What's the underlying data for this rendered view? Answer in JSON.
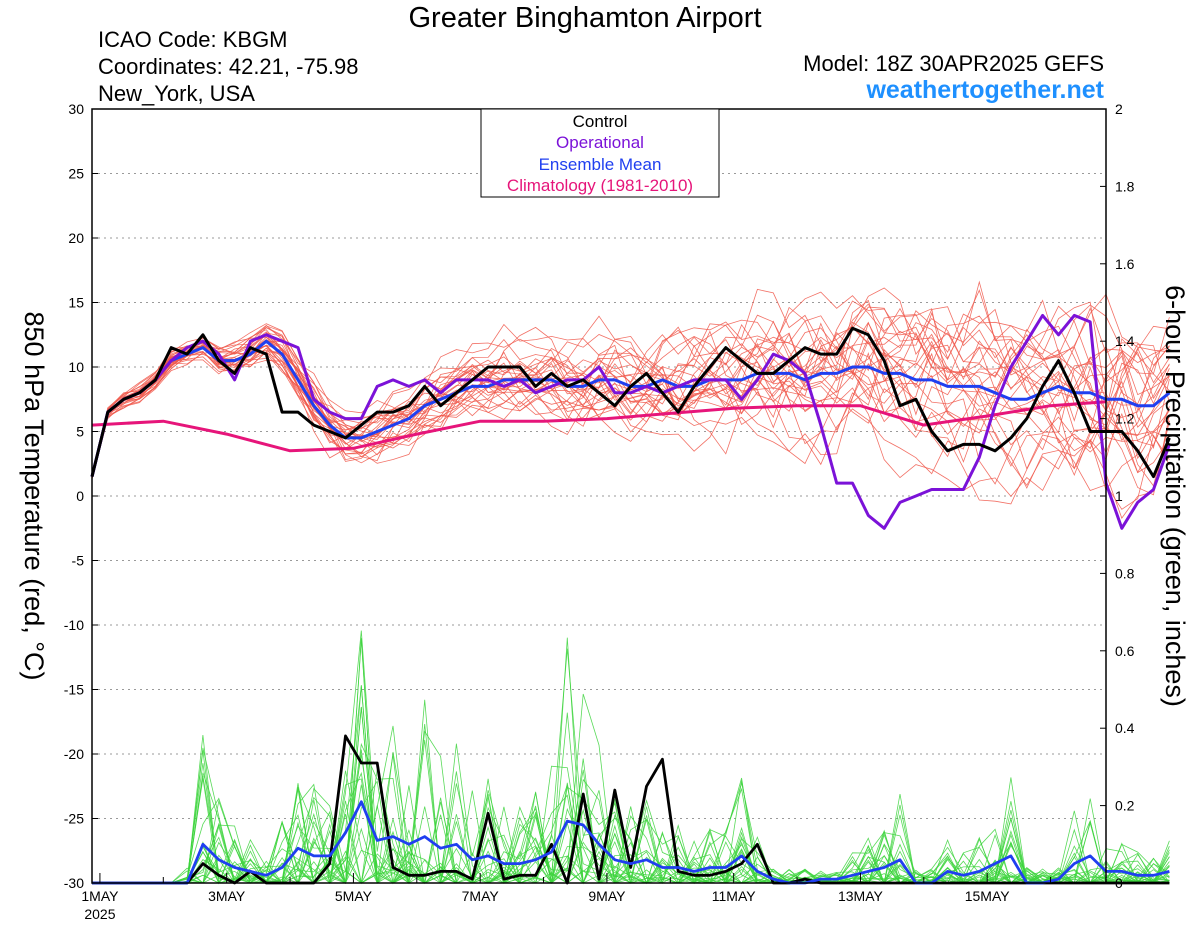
{
  "header": {
    "title": "Greater Binghamton Airport",
    "icao": "ICAO Code: KBGM",
    "coordinates": "Coordinates: 42.21, -75.98",
    "location": "New_York, USA",
    "model": "Model: 18Z 30APR2025 GEFS",
    "site": "weathertogether.net"
  },
  "colors": {
    "control": "#000000",
    "operational": "#7b12d8",
    "mean": "#1f3ff0",
    "climatology": "#e6157a",
    "members_temp": "#f0584b",
    "members_precip": "#3cd43c",
    "site": "#1e90ff"
  },
  "chart_data": {
    "type": "line",
    "title": "Greater Binghamton Airport",
    "ylabel": "850 hPa Temperature (red, °C)",
    "y2label": "6-hour Precipitation (green, inches)",
    "ylim": [
      -30,
      30
    ],
    "y2lim": [
      0,
      2
    ],
    "yticks": [
      30,
      25,
      20,
      15,
      10,
      5,
      0,
      -5,
      -10,
      -15,
      -20,
      -25,
      -30
    ],
    "y2ticks": [
      2,
      1.8,
      1.6,
      1.4,
      1.2,
      1,
      0.8,
      0.6,
      0.4,
      0.2,
      0
    ],
    "xlim_day": [
      0.875,
      16.875
    ],
    "x_ticks": [
      {
        "day": 1,
        "label": "1MAY",
        "sublabel": "2025"
      },
      {
        "day": 3,
        "label": "3MAY"
      },
      {
        "day": 5,
        "label": "5MAY"
      },
      {
        "day": 7,
        "label": "7MAY"
      },
      {
        "day": 9,
        "label": "9MAY"
      },
      {
        "day": 11,
        "label": "11MAY"
      },
      {
        "day": 13,
        "label": "13MAY"
      },
      {
        "day": 15,
        "label": "15MAY"
      }
    ],
    "grid": "dotted horizontal",
    "legend_position": "top-center",
    "legend": [
      "Control",
      "Operational",
      "Ensemble Mean",
      "Climatology (1981-2010)"
    ],
    "x_start_day": 0.875,
    "x_step_day": 0.25,
    "temperature": {
      "control": [
        1.5,
        6.5,
        7.5,
        8.0,
        9.0,
        11.5,
        11.0,
        12.5,
        10.5,
        9.5,
        11.5,
        11.0,
        6.5,
        6.5,
        5.5,
        5.0,
        4.5,
        5.5,
        6.5,
        6.5,
        7.0,
        8.5,
        7.0,
        8.0,
        9.0,
        10.0,
        10.0,
        10.0,
        8.5,
        9.5,
        8.5,
        9.0,
        8.0,
        7.0,
        8.5,
        9.5,
        8.0,
        6.5,
        8.5,
        10.0,
        11.5,
        10.5,
        9.5,
        9.5,
        10.5,
        11.5,
        11.0,
        11.0,
        13.0,
        12.5,
        10.5,
        7.0,
        7.5,
        5.0,
        3.5,
        4.0,
        4.0,
        3.5,
        4.5,
        6.0,
        8.5,
        10.5,
        8.0,
        5.0,
        5.0,
        5.0,
        3.5,
        1.5,
        4.5
      ],
      "operational": [
        1.5,
        6.5,
        7.5,
        8.0,
        9.0,
        10.5,
        11.5,
        12.0,
        11.0,
        9.0,
        12.0,
        12.5,
        12.0,
        11.5,
        7.5,
        6.5,
        6.0,
        6.0,
        8.5,
        9.0,
        8.5,
        9.0,
        8.0,
        9.0,
        9.0,
        9.0,
        8.5,
        9.0,
        8.0,
        8.5,
        9.0,
        9.0,
        10.0,
        8.0,
        8.0,
        8.5,
        8.0,
        8.5,
        9.0,
        9.0,
        9.0,
        7.5,
        9.0,
        11.0,
        10.5,
        9.5,
        5.5,
        1.0,
        1.0,
        -1.5,
        -2.5,
        -0.5,
        0.0,
        0.5,
        0.5,
        0.5,
        3.0,
        7.0,
        10.0,
        12.0,
        14.0,
        12.5,
        14.0,
        13.5,
        1.0,
        -2.5,
        -0.5,
        0.5,
        4.0
      ],
      "mean": [
        1.5,
        6.5,
        7.5,
        8.0,
        9.0,
        10.5,
        11.0,
        11.5,
        10.5,
        10.5,
        11.0,
        12.0,
        11.0,
        9.0,
        7.0,
        5.5,
        4.5,
        4.5,
        5.0,
        5.5,
        6.0,
        7.0,
        7.5,
        8.0,
        8.5,
        8.5,
        9.0,
        9.0,
        9.0,
        9.0,
        8.5,
        8.5,
        9.0,
        9.0,
        8.5,
        8.5,
        9.0,
        8.5,
        8.5,
        9.0,
        9.0,
        9.0,
        9.5,
        9.5,
        9.5,
        9.0,
        9.5,
        9.5,
        10.0,
        10.0,
        9.5,
        9.5,
        9.0,
        9.0,
        8.5,
        8.5,
        8.5,
        8.0,
        7.5,
        7.5,
        8.0,
        8.5,
        8.0,
        8.0,
        7.5,
        7.5,
        7.0,
        7.0,
        8.0
      ],
      "climatology": {
        "day": [
          0.875,
          2.0,
          3.0,
          4.0,
          5.0,
          6.0,
          7.0,
          8.0,
          9.0,
          10.0,
          11.0,
          12.0,
          13.0,
          14.0,
          15.0,
          16.0,
          16.875
        ],
        "value": [
          5.5,
          5.8,
          4.8,
          3.5,
          3.7,
          4.8,
          5.8,
          5.8,
          6.0,
          6.4,
          6.8,
          7.0,
          7.0,
          5.5,
          6.2,
          7.0,
          7.3
        ]
      }
    },
    "precipitation": {
      "control": [
        0.0,
        0.0,
        0.0,
        0.0,
        0.0,
        0.0,
        0.0,
        0.05,
        0.02,
        0.0,
        0.03,
        0.0,
        0.0,
        0.0,
        0.0,
        0.05,
        0.38,
        0.31,
        0.31,
        0.04,
        0.02,
        0.02,
        0.03,
        0.03,
        0.01,
        0.18,
        0.01,
        0.02,
        0.02,
        0.1,
        0.0,
        0.23,
        0.01,
        0.24,
        0.04,
        0.25,
        0.32,
        0.03,
        0.02,
        0.02,
        0.03,
        0.05,
        0.1,
        0.0,
        0.0,
        0.01,
        0.0,
        0.0,
        0.0,
        0.0,
        0.0,
        0.0,
        0.0,
        0.0,
        0.0,
        0.0,
        0.0,
        0.0,
        0.0,
        0.0,
        0.0,
        0.0,
        0.0,
        0.0,
        0.0,
        0.0,
        0.0,
        0.0,
        0.0
      ],
      "mean": [
        0.0,
        0.0,
        0.0,
        0.0,
        0.0,
        0.0,
        0.0,
        0.1,
        0.06,
        0.04,
        0.03,
        0.02,
        0.04,
        0.09,
        0.07,
        0.07,
        0.13,
        0.21,
        0.11,
        0.12,
        0.1,
        0.12,
        0.09,
        0.1,
        0.06,
        0.07,
        0.05,
        0.05,
        0.06,
        0.08,
        0.16,
        0.15,
        0.1,
        0.06,
        0.05,
        0.06,
        0.04,
        0.04,
        0.03,
        0.04,
        0.04,
        0.07,
        0.03,
        0.01,
        0.0,
        0.0,
        0.01,
        0.01,
        0.02,
        0.03,
        0.04,
        0.06,
        0.0,
        0.0,
        0.03,
        0.02,
        0.03,
        0.05,
        0.07,
        0.0,
        0.0,
        0.01,
        0.05,
        0.07,
        0.03,
        0.03,
        0.02,
        0.02,
        0.03
      ]
    },
    "ensemble_member_count": 30
  }
}
